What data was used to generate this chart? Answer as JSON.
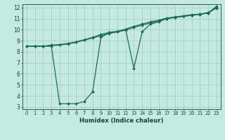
{
  "xlabel": "Humidex (Indice chaleur)",
  "bg_color": "#c5e8e0",
  "grid_color": "#a8cfc8",
  "line_color": "#1a6b5a",
  "xlim": [
    -0.5,
    23.5
  ],
  "ylim": [
    2.8,
    12.3
  ],
  "xticks": [
    0,
    1,
    2,
    3,
    4,
    5,
    6,
    7,
    8,
    9,
    10,
    11,
    12,
    13,
    14,
    15,
    16,
    17,
    18,
    19,
    20,
    21,
    22,
    23
  ],
  "yticks": [
    3,
    4,
    5,
    6,
    7,
    8,
    9,
    10,
    11,
    12
  ],
  "series1_x": [
    0,
    1,
    2,
    3,
    4,
    5,
    6,
    7,
    8,
    9,
    10,
    11,
    12,
    13,
    14,
    15,
    16,
    17,
    18,
    19,
    20,
    21,
    22,
    23
  ],
  "series1_y": [
    8.5,
    8.5,
    8.5,
    8.5,
    3.3,
    3.3,
    3.3,
    3.5,
    4.4,
    9.3,
    9.7,
    9.8,
    10.0,
    6.5,
    9.8,
    10.5,
    10.7,
    11.0,
    11.1,
    11.2,
    11.3,
    11.4,
    11.5,
    12.1
  ],
  "series2_x": [
    0,
    1,
    2,
    3,
    4,
    5,
    6,
    7,
    8,
    9,
    10,
    11,
    12,
    13,
    14,
    15,
    16,
    17,
    18,
    19,
    20,
    21,
    22,
    23
  ],
  "series2_y": [
    8.5,
    8.5,
    8.5,
    8.6,
    8.65,
    8.75,
    8.9,
    9.1,
    9.3,
    9.55,
    9.75,
    9.85,
    10.05,
    10.3,
    10.5,
    10.7,
    10.85,
    11.05,
    11.15,
    11.25,
    11.35,
    11.4,
    11.55,
    12.0
  ],
  "series3_x": [
    0,
    1,
    2,
    3,
    4,
    5,
    6,
    7,
    8,
    9,
    10,
    11,
    12,
    13,
    14,
    15,
    16,
    17,
    18,
    19,
    20,
    21,
    22,
    23
  ],
  "series3_y": [
    8.5,
    8.5,
    8.5,
    8.55,
    8.6,
    8.7,
    8.85,
    9.05,
    9.25,
    9.45,
    9.65,
    9.8,
    9.95,
    10.2,
    10.4,
    10.6,
    10.8,
    11.0,
    11.1,
    11.2,
    11.3,
    11.38,
    11.5,
    11.95
  ]
}
